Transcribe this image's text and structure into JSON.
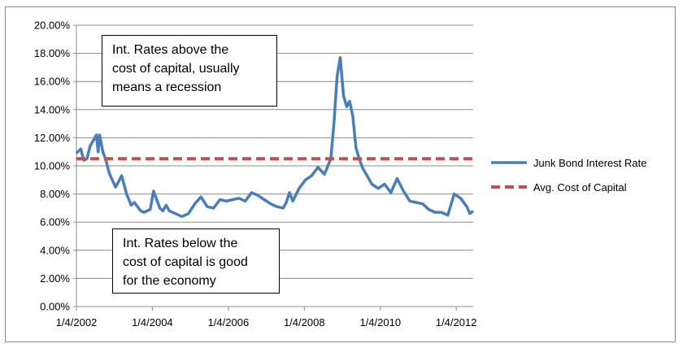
{
  "chart_data": {
    "type": "line",
    "title": "",
    "xlabel": "",
    "ylabel": "",
    "ylim": [
      0,
      20
    ],
    "y_ticks": [
      "0.00%",
      "2.00%",
      "4.00%",
      "6.00%",
      "8.00%",
      "10.00%",
      "12.00%",
      "14.00%",
      "16.00%",
      "18.00%",
      "20.00%"
    ],
    "x_ticks": [
      "1/4/2002",
      "1/4/2004",
      "1/4/2006",
      "1/4/2008",
      "1/4/2010",
      "1/4/2012"
    ],
    "grid": "horizontal",
    "legend_position": "right",
    "series": [
      {
        "name": "Junk Bond Interest Rate",
        "color": "#4a7ebb",
        "style": "solid",
        "x": [
          "2002-01-04",
          "2002-02-15",
          "2002-03-15",
          "2002-04-15",
          "2002-05-15",
          "2002-06-15",
          "2002-07-15",
          "2002-08-01",
          "2002-08-15",
          "2002-09-15",
          "2002-10-15",
          "2002-11-15",
          "2002-12-15",
          "2003-01-15",
          "2003-02-15",
          "2003-03-15",
          "2003-05-01",
          "2003-06-15",
          "2003-07-15",
          "2003-08-15",
          "2003-09-15",
          "2003-10-15",
          "2003-12-15",
          "2004-01-15",
          "2004-02-15",
          "2004-03-15",
          "2004-04-15",
          "2004-05-15",
          "2004-06-15",
          "2004-08-15",
          "2004-10-15",
          "2004-12-15",
          "2005-02-15",
          "2005-04-15",
          "2005-06-15",
          "2005-08-15",
          "2005-10-15",
          "2005-12-15",
          "2006-02-15",
          "2006-04-15",
          "2006-06-15",
          "2006-08-15",
          "2006-10-15",
          "2006-12-15",
          "2007-02-15",
          "2007-04-15",
          "2007-06-15",
          "2007-07-15",
          "2007-08-15",
          "2007-09-15",
          "2007-11-15",
          "2008-01-15",
          "2008-03-15",
          "2008-05-15",
          "2008-07-15",
          "2008-09-15",
          "2008-10-15",
          "2008-11-15",
          "2008-12-15",
          "2009-01-15",
          "2009-02-15",
          "2009-03-15",
          "2009-04-15",
          "2009-05-15",
          "2009-06-15",
          "2009-07-15",
          "2009-08-15",
          "2009-10-15",
          "2009-12-15",
          "2010-02-15",
          "2010-04-15",
          "2010-06-15",
          "2010-08-15",
          "2010-10-15",
          "2010-12-15",
          "2011-02-15",
          "2011-04-15",
          "2011-06-15",
          "2011-08-15",
          "2011-10-15",
          "2011-12-15",
          "2012-02-15",
          "2012-04-15",
          "2012-05-15",
          "2012-06-15"
        ],
        "values": [
          10.9,
          11.2,
          10.4,
          10.5,
          11.4,
          11.8,
          12.2,
          11.0,
          12.2,
          11.0,
          10.4,
          9.5,
          9.0,
          8.5,
          8.9,
          9.3,
          8.0,
          7.2,
          7.4,
          7.1,
          6.8,
          6.7,
          6.9,
          8.2,
          7.6,
          7.0,
          6.8,
          7.2,
          6.8,
          6.6,
          6.4,
          6.6,
          7.3,
          7.8,
          7.1,
          7.0,
          7.6,
          7.5,
          7.6,
          7.7,
          7.5,
          8.1,
          7.9,
          7.6,
          7.3,
          7.1,
          7.0,
          7.4,
          8.1,
          7.5,
          8.4,
          9.0,
          9.3,
          9.9,
          9.4,
          10.5,
          13.0,
          16.4,
          17.7,
          15.0,
          14.2,
          14.6,
          13.5,
          11.3,
          10.5,
          9.9,
          9.5,
          8.7,
          8.4,
          8.7,
          8.1,
          9.1,
          8.2,
          7.5,
          7.4,
          7.3,
          6.9,
          6.7,
          6.7,
          6.5,
          8.0,
          7.7,
          7.1,
          6.6,
          6.8
        ]
      },
      {
        "name": "Avg. Cost of Capital",
        "color": "#c0504d",
        "style": "dashed",
        "x": [
          "2002-01-04",
          "2012-06-15"
        ],
        "values": [
          10.5,
          10.5
        ]
      }
    ]
  },
  "annotations": {
    "top": "Int. Rates above the\ncost of capital, usually\nmeans a recession",
    "bottom": "Int. Rates below the\ncost of capital is good\nfor the economy"
  }
}
